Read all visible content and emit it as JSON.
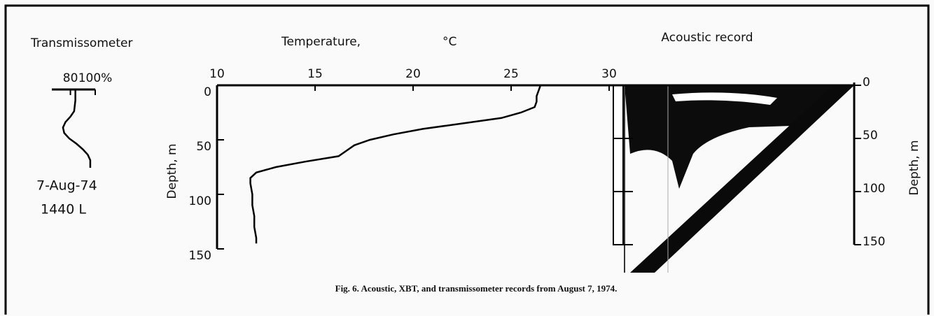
{
  "labels": {
    "transmissometer": "Transmissometer",
    "date": "7-Aug-74",
    "time": "1440 L",
    "depth_left": "Depth,  m",
    "depth_right": "Depth,  m",
    "caption": "Fig. 6.   Acoustic, XBT, and transmissometer records from August 7, 1974."
  },
  "chart_data": [
    {
      "type": "line",
      "xlim": [
        65,
        100
      ],
      "xticks": [
        80,
        {
          "value": 100,
          "label": "100%"
        }
      ],
      "ylim": [
        0,
        72
      ],
      "depth": [
        0,
        10,
        20,
        25,
        30,
        35,
        40,
        45,
        50,
        55,
        60,
        65,
        72
      ],
      "values": [
        84,
        84,
        83,
        80,
        76,
        74,
        75,
        79,
        85,
        90,
        94,
        96,
        96
      ]
    },
    {
      "type": "line",
      "title": "Temperature,",
      "x_label": "°C",
      "xlim": [
        10,
        30
      ],
      "xticks": [
        10,
        15,
        20,
        25,
        30
      ],
      "ylim": [
        0,
        150
      ],
      "yticks": [
        0,
        50,
        100,
        150
      ],
      "depth": [
        0,
        5,
        10,
        15,
        20,
        25,
        30,
        35,
        40,
        45,
        50,
        55,
        60,
        65,
        70,
        75,
        80,
        85,
        90,
        100,
        110,
        120,
        130,
        140,
        145
      ],
      "values": [
        26.5,
        26.4,
        26.3,
        26.3,
        26.2,
        25.5,
        24.5,
        22.5,
        20.5,
        19,
        17.8,
        17,
        16.6,
        16.2,
        14.5,
        13,
        12,
        11.7,
        11.7,
        11.8,
        11.8,
        11.9,
        11.9,
        12,
        12
      ]
    },
    {
      "type": "image",
      "title": "Acoustic record",
      "ylim": [
        0,
        150
      ],
      "yticks": [
        0,
        50,
        100,
        150
      ]
    }
  ]
}
